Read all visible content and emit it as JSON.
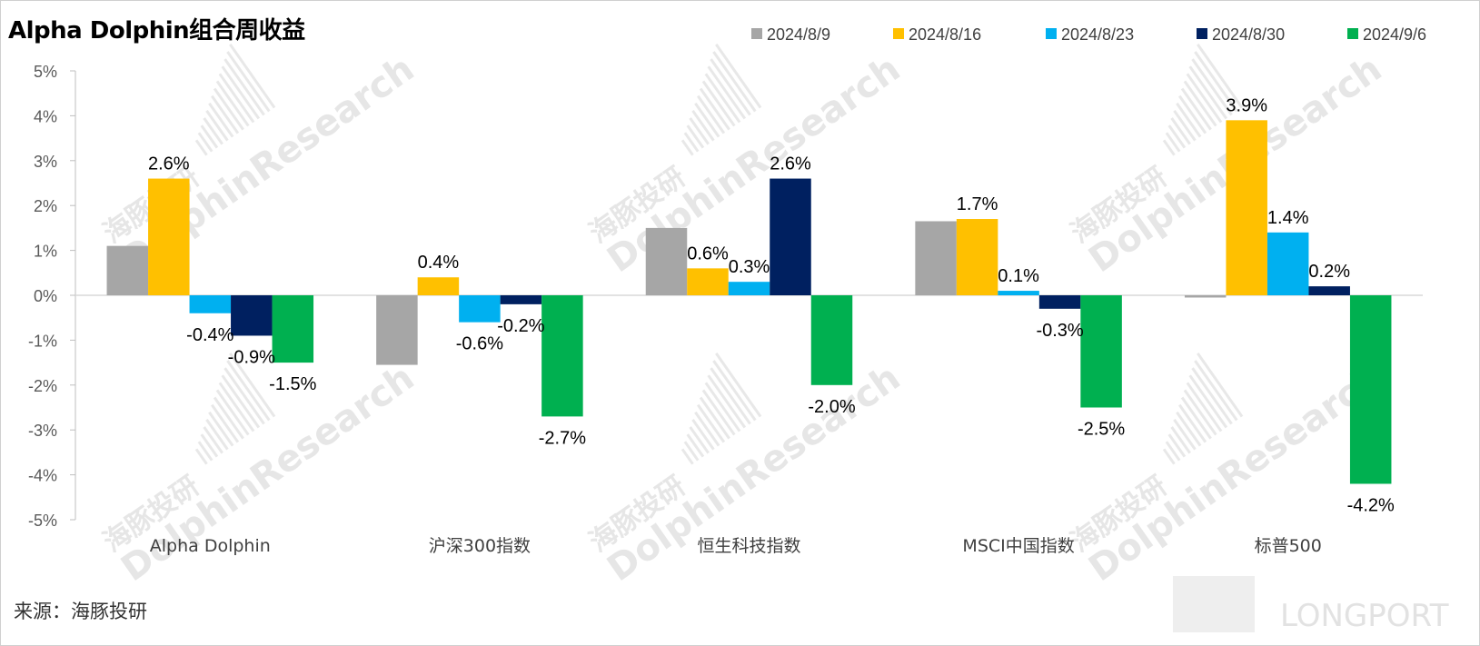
{
  "title": "Alpha Dolphin组合周收益",
  "source": "来源：海豚投研",
  "watermark": {
    "brand_cn": "海豚投研",
    "brand_en": "DolphinResearch",
    "corner": "LONGPORT"
  },
  "colors": {
    "2024/8/9": "#a6a6a6",
    "2024/8/16": "#ffc000",
    "2024/8/23": "#00b0f0",
    "2024/8/30": "#002060",
    "2024/9/6": "#00b050",
    "axis": "#bfbfbf",
    "text": "#000000",
    "tick_text": "#595959"
  },
  "chart_data": {
    "type": "bar",
    "title": "Alpha Dolphin组合周收益",
    "xlabel": "",
    "ylabel": "",
    "ylim": [
      -5,
      5
    ],
    "yticks": [
      5,
      4,
      3,
      2,
      1,
      0,
      -1,
      -2,
      -3,
      -4,
      -5
    ],
    "ytick_labels": [
      "5%",
      "4%",
      "3%",
      "2%",
      "1%",
      "0%",
      "-1%",
      "-2%",
      "-3%",
      "-4%",
      "-5%"
    ],
    "grid": false,
    "legend_position": "top-right",
    "categories": [
      "Alpha Dolphin",
      "沪深300指数",
      "恒生科技指数",
      "MSCI中国指数",
      "标普500"
    ],
    "series": [
      {
        "name": "2024/8/9",
        "values": [
          1.1,
          -1.55,
          1.5,
          1.65,
          -0.05
        ],
        "labels": [
          null,
          null,
          null,
          null,
          null
        ]
      },
      {
        "name": "2024/8/16",
        "values": [
          2.6,
          0.4,
          0.6,
          1.7,
          3.9
        ],
        "labels": [
          "2.6%",
          "0.4%",
          "0.6%",
          "1.7%",
          "3.9%"
        ]
      },
      {
        "name": "2024/8/23",
        "values": [
          -0.4,
          -0.6,
          0.3,
          0.1,
          1.4
        ],
        "labels": [
          "-0.4%",
          "-0.6%",
          "0.3%",
          "0.1%",
          "1.4%"
        ]
      },
      {
        "name": "2024/8/30",
        "values": [
          -0.9,
          -0.2,
          2.6,
          -0.3,
          0.2
        ],
        "labels": [
          "-0.9%",
          "-0.2%",
          "2.6%",
          "-0.3%",
          "0.2%"
        ]
      },
      {
        "name": "2024/9/6",
        "values": [
          -1.5,
          -2.7,
          -2.0,
          -2.5,
          -4.2
        ],
        "labels": [
          "-1.5%",
          "-2.7%",
          "-2.0%",
          "-2.5%",
          "-4.2%"
        ]
      }
    ]
  }
}
